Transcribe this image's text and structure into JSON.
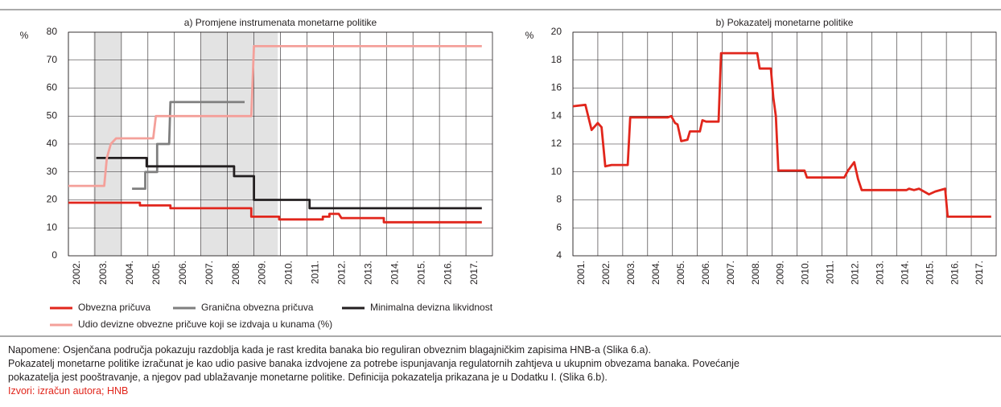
{
  "chart_data": [
    {
      "type": "line",
      "title": "a) Promjene instrumenata monetarne politike",
      "y_label": "%",
      "xlim": [
        2002,
        2018
      ],
      "ylim": [
        0,
        80
      ],
      "xticks": [
        {
          "value": 2002,
          "label": "2002."
        },
        {
          "value": 2003,
          "label": "2003."
        },
        {
          "value": 2004,
          "label": "2004."
        },
        {
          "value": 2005,
          "label": "2005."
        },
        {
          "value": 2006,
          "label": "2006."
        },
        {
          "value": 2007,
          "label": "2007."
        },
        {
          "value": 2008,
          "label": "2008."
        },
        {
          "value": 2009,
          "label": "2009."
        },
        {
          "value": 2010,
          "label": "2010."
        },
        {
          "value": 2011,
          "label": "2011."
        },
        {
          "value": 2012,
          "label": "2012."
        },
        {
          "value": 2013,
          "label": "2013."
        },
        {
          "value": 2014,
          "label": "2014."
        },
        {
          "value": 2015,
          "label": "2015."
        },
        {
          "value": 2016,
          "label": "2016."
        },
        {
          "value": 2017,
          "label": "2017."
        }
      ],
      "yticks": [
        0,
        10,
        20,
        30,
        40,
        50,
        60,
        70,
        80
      ],
      "grid": true,
      "shaded_x": [
        [
          2002.95,
          2004.0
        ],
        [
          2007.0,
          2009.9
        ]
      ],
      "series": [
        {
          "name": "Obvezna pričuva",
          "color": "#e1261c",
          "x": [
            2002,
            2004.7,
            2004.7,
            2005.85,
            2005.85,
            2008.9,
            2008.9,
            2009.95,
            2009.95,
            2011.6,
            2011.6,
            2011.85,
            2011.85,
            2012.2,
            2012.3,
            2013.9,
            2013.9,
            2017.6
          ],
          "values": [
            19,
            19,
            18,
            18,
            17,
            17,
            14,
            14,
            13,
            13,
            14,
            14,
            15,
            15,
            13.5,
            13.5,
            12,
            12
          ]
        },
        {
          "name": "Granična obvezna pričuva",
          "color": "#7f7f7f",
          "x": [
            2004.4,
            2004.9,
            2004.9,
            2005.05,
            2005.05,
            2005.35,
            2005.35,
            2005.8,
            2005.85,
            2008.65
          ],
          "values": [
            24,
            24,
            30,
            30,
            30,
            30,
            40,
            40,
            55,
            55
          ]
        },
        {
          "name": "Minimalna devizna likvidnost",
          "color": "#231f20",
          "x": [
            2003.05,
            2004.95,
            2004.95,
            2008.25,
            2008.25,
            2009.0,
            2009.0,
            2011.1,
            2011.1,
            2017.6
          ],
          "values": [
            35,
            35,
            32,
            32,
            28.5,
            28.5,
            20,
            20,
            17,
            17
          ]
        },
        {
          "name": "Udio devizne obvezne pričuve koji se izdvaja u kunama (%)",
          "color": "#f4a09a",
          "x": [
            2002,
            2003.35,
            2003.45,
            2003.6,
            2003.8,
            2005.2,
            2005.3,
            2008.9,
            2009.0,
            2017.6
          ],
          "values": [
            25,
            25,
            35,
            40,
            42,
            42,
            50,
            50,
            75,
            75
          ]
        }
      ]
    },
    {
      "type": "line",
      "title": "b) Pokazatelj monetarne politike",
      "y_label": "%",
      "xlim": [
        2001,
        2018
      ],
      "ylim": [
        4,
        20
      ],
      "xticks": [
        {
          "value": 2001,
          "label": "2001."
        },
        {
          "value": 2002,
          "label": "2002."
        },
        {
          "value": 2003,
          "label": "2003."
        },
        {
          "value": 2004,
          "label": "2004."
        },
        {
          "value": 2005,
          "label": "2005."
        },
        {
          "value": 2006,
          "label": "2006."
        },
        {
          "value": 2007,
          "label": "2007."
        },
        {
          "value": 2008,
          "label": "2008."
        },
        {
          "value": 2009,
          "label": "2009."
        },
        {
          "value": 2010,
          "label": "2010."
        },
        {
          "value": 2011,
          "label": "2011."
        },
        {
          "value": 2012,
          "label": "2012."
        },
        {
          "value": 2013,
          "label": "2013."
        },
        {
          "value": 2014,
          "label": "2014."
        },
        {
          "value": 2015,
          "label": "2015."
        },
        {
          "value": 2016,
          "label": "2016."
        },
        {
          "value": 2017,
          "label": "2017."
        }
      ],
      "yticks": [
        4,
        6,
        8,
        10,
        12,
        14,
        16,
        18,
        20
      ],
      "grid": true,
      "series": [
        {
          "name": null,
          "color": "#e1261c",
          "x": [
            2001,
            2001.5,
            2001.75,
            2002.0,
            2002.15,
            2002.3,
            2002.55,
            2003.2,
            2003.3,
            2004.8,
            2004.95,
            2005.1,
            2005.2,
            2005.35,
            2005.6,
            2005.7,
            2006.1,
            2006.2,
            2006.35,
            2006.85,
            2006.95,
            2008.4,
            2008.5,
            2008.95,
            2009.05,
            2009.15,
            2009.25,
            2010.3,
            2010.4,
            2011.9,
            2012.05,
            2012.3,
            2012.45,
            2012.6,
            2014.4,
            2014.5,
            2014.7,
            2014.9,
            2015.3,
            2015.55,
            2015.95,
            2016.05,
            2017.8
          ],
          "values": [
            14.7,
            14.8,
            13,
            13.5,
            13.2,
            10.4,
            10.5,
            10.5,
            13.9,
            13.9,
            14,
            13.5,
            13.4,
            12.2,
            12.3,
            12.9,
            12.9,
            13.7,
            13.6,
            13.6,
            18.5,
            18.5,
            17.4,
            17.4,
            15.3,
            14,
            10.1,
            10.1,
            9.6,
            9.6,
            10.1,
            10.7,
            9.5,
            8.7,
            8.7,
            8.8,
            8.7,
            8.8,
            8.4,
            8.6,
            8.8,
            6.8,
            6.8
          ]
        }
      ]
    }
  ],
  "notes": [
    "Napomene: Osjenčana područja pokazuju razdoblja kada je rast kredita banaka bio reguliran obveznim blagajničkim zapisima HNB-a (Slika 6.a).",
    "Pokazatelj monetarne politike izračunat je kao udio pasive banaka izdvojene za potrebe ispunjavanja regulatornih zahtjeva u ukupnim obvezama banaka. Povećanje",
    "pokazatelja jest pooštravanje, a njegov pad ublažavanje monetarne politike. Definicija pokazatelja prikazana je u Dodatku I. (Slika 6.b)."
  ],
  "source": "Izvori: izračun autora; HNB"
}
